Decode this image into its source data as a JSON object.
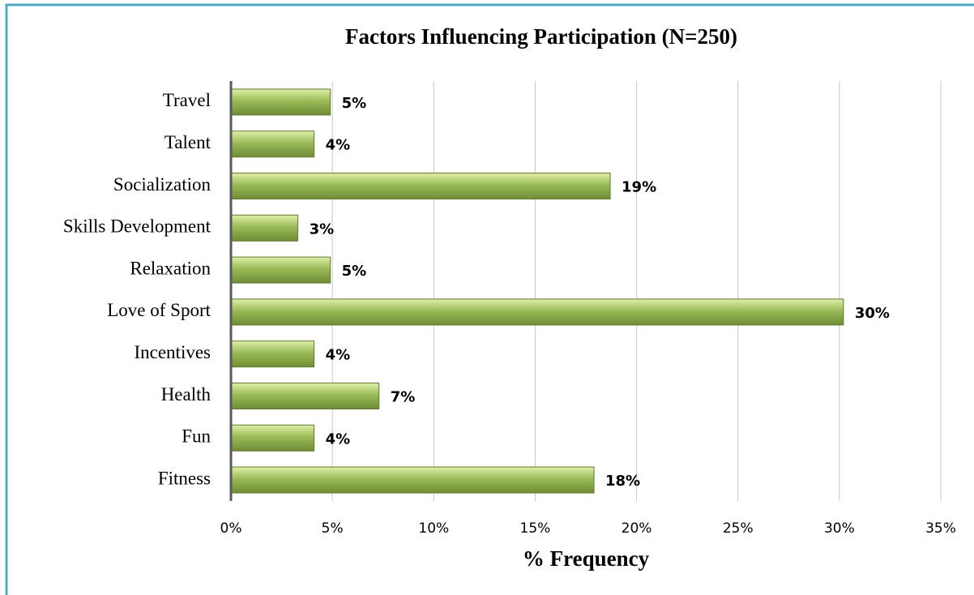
{
  "chart_data": {
    "type": "barh",
    "title": "Factors Influencing Participation (N=250)",
    "x_label": "% Frequency",
    "categories": [
      "Travel",
      "Talent",
      "Socialization",
      "Skills Development",
      "Relaxation",
      "Love of Sport",
      "Incentives",
      "Health",
      "Fun",
      "Fitness"
    ],
    "values": [
      4.9,
      4.1,
      18.7,
      3.3,
      4.9,
      30.2,
      4.1,
      7.3,
      4.1,
      17.9
    ],
    "value_labels": [
      "5%",
      "4%",
      "19%",
      "3%",
      "5%",
      "30%",
      "4%",
      "7%",
      "4%",
      "18%"
    ],
    "color": "#9bbb59",
    "xlim": [
      0,
      35
    ],
    "xticks": [
      {
        "value": 0,
        "label": "0%"
      },
      {
        "value": 5,
        "label": "5%"
      },
      {
        "value": 10,
        "label": "10%"
      },
      {
        "value": 15,
        "label": "15%"
      },
      {
        "value": 20,
        "label": "20%"
      },
      {
        "value": 25,
        "label": "25%"
      },
      {
        "value": 30,
        "label": "30%"
      },
      {
        "value": 35,
        "label": "35%"
      }
    ],
    "grid": true
  }
}
